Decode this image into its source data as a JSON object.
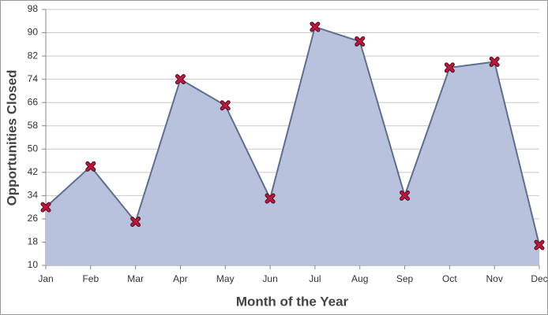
{
  "chart_data": {
    "type": "area",
    "x_label": "Month of the Year",
    "y_label": "Opportunities Closed",
    "categories": [
      "Jan",
      "Feb",
      "Mar",
      "Apr",
      "May",
      "Jun",
      "Jul",
      "Aug",
      "Sep",
      "Oct",
      "Nov",
      "Dec"
    ],
    "values": [
      30,
      44,
      25,
      74,
      65,
      33,
      92,
      87,
      34,
      78,
      80,
      17
    ],
    "color": "#b8c2dc",
    "line_color": "#5e6e90",
    "marker_color": "#c0143c",
    "ylim": [
      10,
      98
    ],
    "yticks": [
      10,
      18,
      26,
      34,
      42,
      50,
      58,
      66,
      74,
      82,
      90,
      98
    ],
    "grid": true
  }
}
